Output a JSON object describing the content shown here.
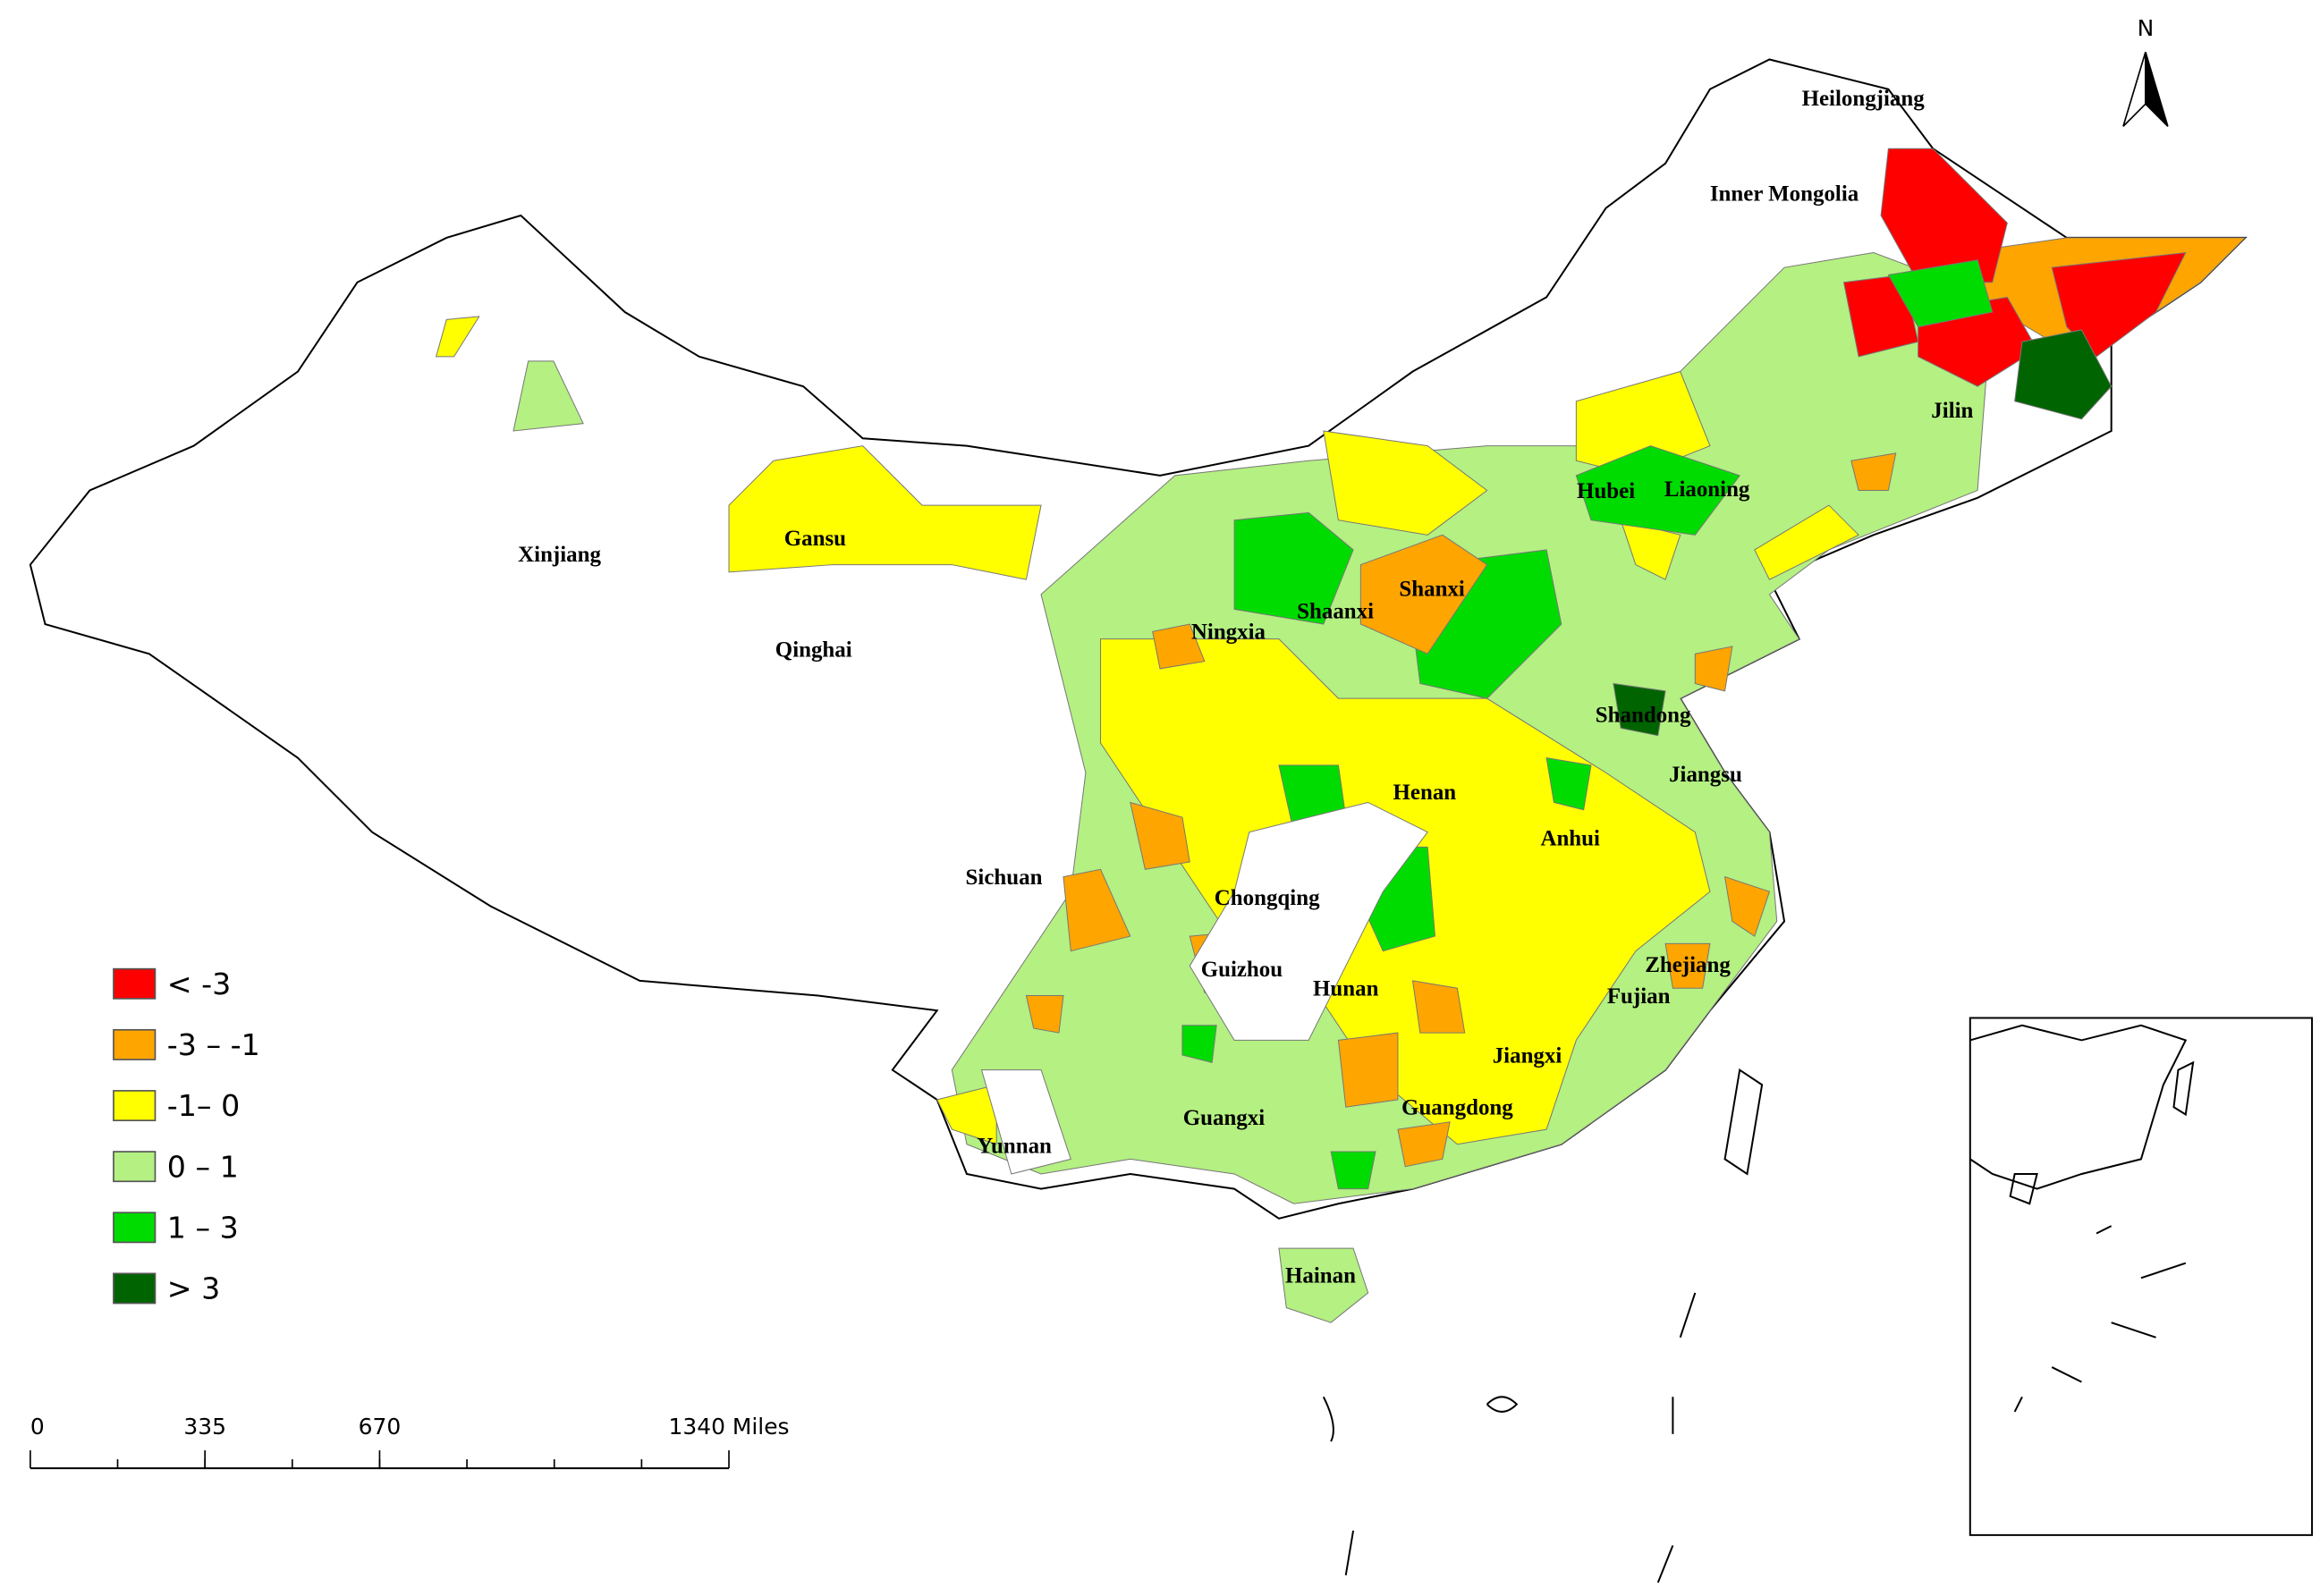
{
  "map": {
    "north_label": "N",
    "regions": [
      "Heilongjiang",
      "Inner Mongolia",
      "Jilin",
      "Liaoning",
      "Hubei",
      "Xinjiang",
      "Gansu",
      "Qinghai",
      "Shanxi",
      "Shaanxi",
      "Ningxia",
      "Shandong",
      "Jiangsu",
      "Henan",
      "Anhui",
      "Sichuan",
      "Chongqing",
      "Guizhou",
      "Hunan",
      "Zhejiang",
      "Fujian",
      "Jiangxi",
      "Guangdong",
      "Guangxi",
      "Yunnan",
      "Hainan"
    ],
    "legend": [
      {
        "label": "< -3",
        "color": "#ff0000"
      },
      {
        "label": "-3 – -1",
        "color": "#ffa500"
      },
      {
        "label": "-1– 0",
        "color": "#ffff00"
      },
      {
        "label": "0 – 1",
        "color": "#b4f082"
      },
      {
        "label": "1 – 3",
        "color": "#00dc00"
      },
      {
        "label": "> 3",
        "color": "#006400"
      }
    ],
    "scale_bar": {
      "ticks": [
        0,
        335,
        670,
        {
          "value": 1340,
          "label": "1340 Miles"
        }
      ]
    }
  }
}
